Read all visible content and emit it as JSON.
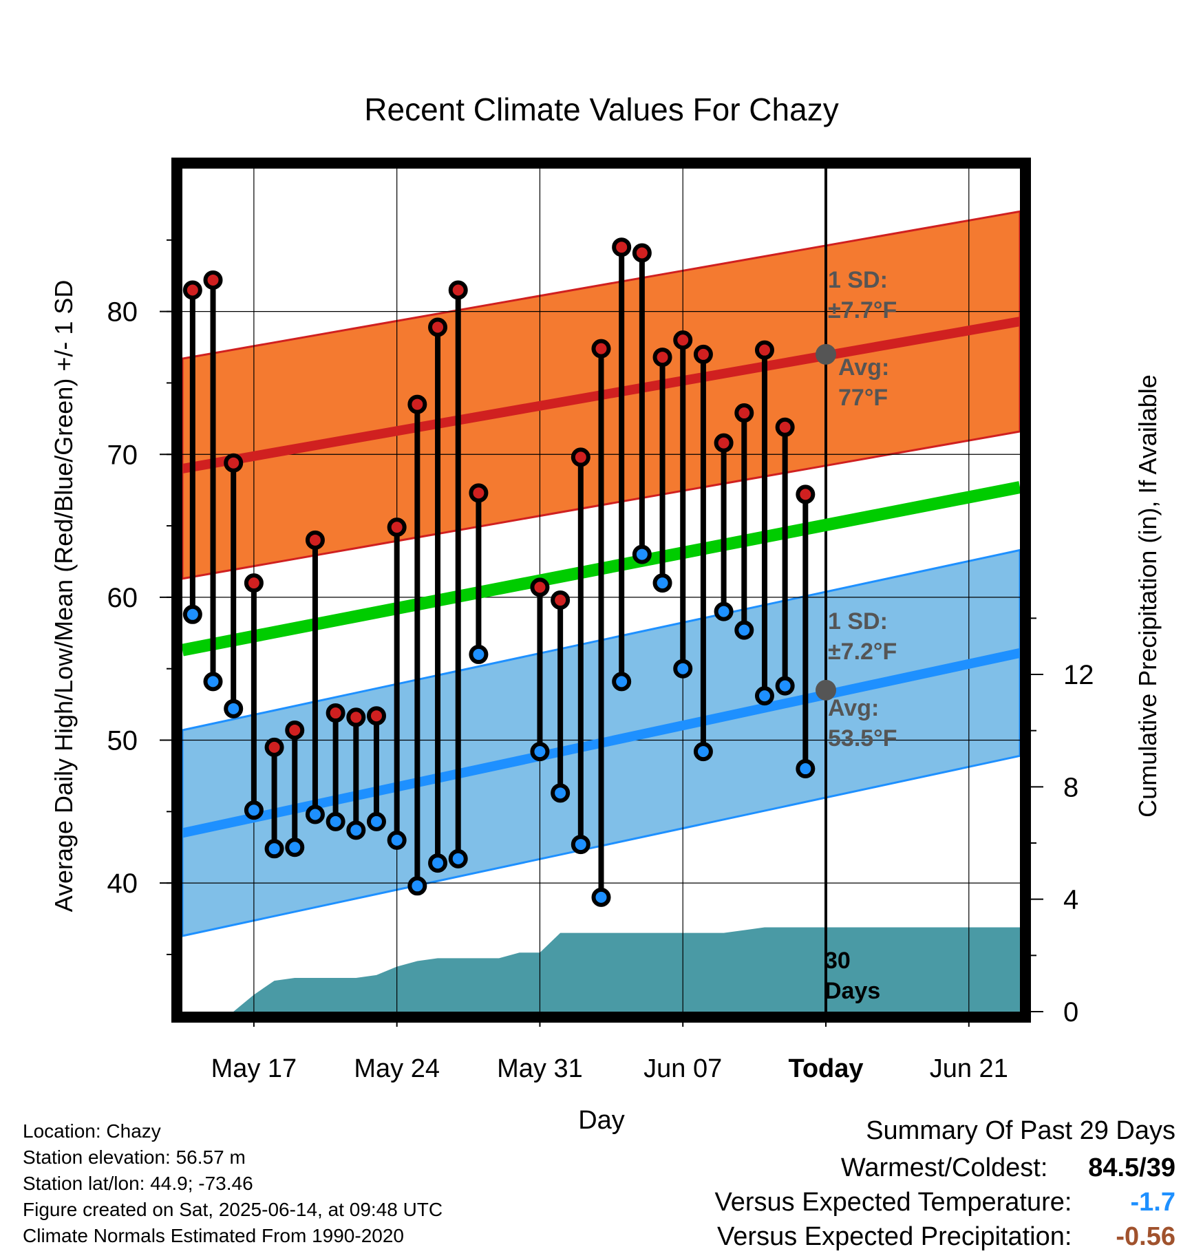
{
  "chart_data": {
    "type": "line",
    "title": "Recent Climate Values For Chazy",
    "xlabel": "Day",
    "ylabel": "Average Daily High/Low/Mean (Red/Blue/Green) +/- 1 SD",
    "y2label": "Cumulative Precipitation (in), If Available",
    "x_tick_labels": [
      "May 17",
      "May 24",
      "May 31",
      "Jun 07",
      "Today",
      "Jun 21"
    ],
    "x_tick_days": [
      3,
      10,
      17,
      24,
      31,
      38
    ],
    "xlim": [
      -0.5,
      40.5
    ],
    "ylim": [
      31,
      90
    ],
    "y_ticks": [
      40,
      50,
      60,
      70,
      80
    ],
    "y2lim": [
      0,
      30
    ],
    "y2_ticks": [
      0,
      4,
      8,
      12
    ],
    "grid": true,
    "daily_high": [
      81.5,
      82.2,
      69.4,
      61.0,
      49.5,
      50.7,
      64.0,
      51.9,
      51.6,
      51.7,
      64.9,
      73.5,
      78.9,
      81.5,
      67.3,
      null,
      null,
      60.7,
      59.8,
      69.8,
      77.4,
      84.5,
      84.1,
      76.8,
      78.0,
      77.0,
      70.8,
      72.9,
      77.3,
      71.9,
      67.2
    ],
    "daily_low": [
      58.8,
      54.1,
      52.2,
      45.1,
      42.4,
      42.5,
      44.8,
      44.3,
      43.7,
      44.3,
      43.0,
      39.8,
      41.4,
      41.7,
      56.0,
      null,
      null,
      49.2,
      46.3,
      42.7,
      39.0,
      54.1,
      63.0,
      61.0,
      55.0,
      49.2,
      59.0,
      57.7,
      53.1,
      53.8,
      48.0
    ],
    "avg_high": {
      "start": 69.0,
      "end": 79.3,
      "today": 77,
      "label": "Avg:",
      "value_label": "77°F"
    },
    "avg_low": {
      "start": 43.5,
      "end": 56.1,
      "today": 53.5,
      "label": "Avg:",
      "value_label": "53.5°F"
    },
    "avg_mean": {
      "start": 56.3,
      "end": 67.7
    },
    "sd_high": {
      "value": 7.7,
      "label": "1 SD:",
      "value_label": "±7.7°F"
    },
    "sd_low": {
      "value": 7.2,
      "label": "1 SD:",
      "value_label": "±7.2°F"
    },
    "precip_cumulative": [
      [
        2,
        0.0
      ],
      [
        3,
        0.6
      ],
      [
        4,
        1.1
      ],
      [
        5,
        1.2
      ],
      [
        6,
        1.2
      ],
      [
        7,
        1.2
      ],
      [
        8,
        1.2
      ],
      [
        9,
        1.3
      ],
      [
        10,
        1.6
      ],
      [
        11,
        1.8
      ],
      [
        12,
        1.9
      ],
      [
        13,
        1.9
      ],
      [
        14,
        1.9
      ],
      [
        15,
        1.9
      ],
      [
        16,
        2.1
      ],
      [
        17,
        2.1
      ],
      [
        18,
        2.8
      ],
      [
        19,
        2.8
      ],
      [
        24,
        2.8
      ],
      [
        25,
        2.8
      ],
      [
        26,
        2.8
      ],
      [
        27,
        2.9
      ],
      [
        28,
        3.0
      ],
      [
        29,
        3.0
      ],
      [
        40.5,
        3.0
      ]
    ],
    "today_marker_label": "30\nDays",
    "colors": {
      "high": "#d02020",
      "low": "#1e90ff",
      "mean": "#00cc00",
      "high_band": "#f47a30",
      "low_band": "#80bfe8",
      "precip": "#4a9aa5",
      "today_dot": "#555555"
    }
  },
  "info": {
    "location": "Location: Chazy",
    "elevation": "Station elevation: 56.57 m",
    "latlon": "Station lat/lon: 44.9; -73.46",
    "created": "Figure created on Sat, 2025-06-14, at 09:48 UTC",
    "normals": "Climate Normals Estimated From 1990-2020"
  },
  "summary": {
    "title": "Summary Of Past 29 Days",
    "warm_cold_label": "Warmest/Coldest:",
    "warm_cold_value": "84.5/39",
    "temp_label": "Versus Expected Temperature:",
    "temp_value": "-1.7",
    "temp_color": "#1e90ff",
    "precip_label": "Versus Expected Precipitation:",
    "precip_value": "-0.56",
    "precip_color": "#a0522d"
  }
}
